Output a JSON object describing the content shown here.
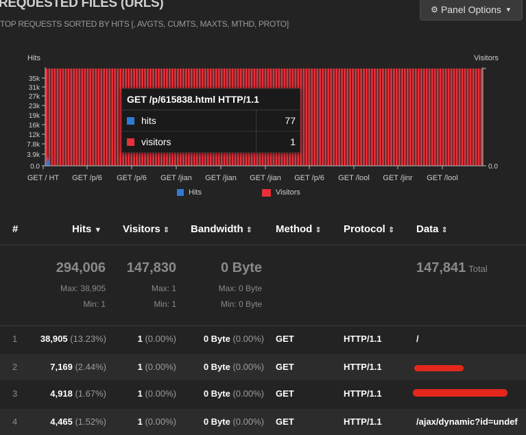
{
  "panel": {
    "title": "REQUESTED FILES (URLS)",
    "subtitle": "TOP REQUESTS SORTED BY HITS [, AVGTS, CUMTS, MAXTS, MTHD, PROTO]",
    "options_label": "Panel Options",
    "options_icon": "gear-icon"
  },
  "colors": {
    "hits": "#2f7bd3",
    "visitors": "#e8303a",
    "background": "#232323"
  },
  "chart_data": {
    "type": "bar",
    "left_axis_label": "Hits",
    "right_axis_label": "Visitors",
    "y_ticks": [
      "35k",
      "31k",
      "27k",
      "23k",
      "19k",
      "16k",
      "12k",
      "7.8k",
      "3.9k",
      "0.0"
    ],
    "y_right_ticks": [
      "0.0"
    ],
    "x_tick_labels": [
      "GET / HT",
      "GET /p/6",
      "GET /p/6",
      "GET /jian",
      "GET /jian",
      "GET /jian",
      "GET /p/6",
      "GET /lool",
      "GET /jinr",
      "GET /lool"
    ],
    "series": [
      {
        "name": "Hits",
        "color": "#2f7bd3"
      },
      {
        "name": "Visitors",
        "color": "#e8303a"
      }
    ],
    "tooltip": {
      "title": "GET /p/615838.html HTTP/1.1",
      "rows": [
        {
          "name": "hits",
          "value": "77",
          "color": "#2f7bd3"
        },
        {
          "name": "visitors",
          "value": "1",
          "color": "#e8303a"
        }
      ]
    },
    "legend": [
      "Hits",
      "Visitors"
    ]
  },
  "table": {
    "headers": {
      "index": "#",
      "hits": "Hits",
      "visitors": "Visitors",
      "bandwidth": "Bandwidth",
      "method": "Method",
      "protocol": "Protocol",
      "data": "Data"
    },
    "sort_desc": "▼",
    "sort_both": "⇕",
    "summary": {
      "hits_total": "294,006",
      "hits_max": "Max: 38,905",
      "hits_min": "Min: 1",
      "visitors_total": "147,830",
      "visitors_max": "Max: 1",
      "visitors_min": "Min: 1",
      "bandwidth_total": "0 Byte",
      "bandwidth_max": "Max: 0 Byte",
      "bandwidth_min": "Min: 0 Byte",
      "data_total": "147,841",
      "data_total_label": "Total"
    },
    "rows": [
      {
        "index": "1",
        "hits": "38,905",
        "hits_pct": "(13.23%)",
        "visitors": "1",
        "visitors_pct": "(0.00%)",
        "bandwidth": "0 Byte",
        "bandwidth_pct": "(0.00%)",
        "method": "GET",
        "protocol": "HTTP/1.1",
        "data": "/"
      },
      {
        "index": "2",
        "hits": "7,169",
        "hits_pct": "(2.44%)",
        "visitors": "1",
        "visitors_pct": "(0.00%)",
        "bandwidth": "0 Byte",
        "bandwidth_pct": "(0.00%)",
        "method": "GET",
        "protocol": "HTTP/1.1",
        "data": ""
      },
      {
        "index": "3",
        "hits": "4,918",
        "hits_pct": "(1.67%)",
        "visitors": "1",
        "visitors_pct": "(0.00%)",
        "bandwidth": "0 Byte",
        "bandwidth_pct": "(0.00%)",
        "method": "GET",
        "protocol": "HTTP/1.1",
        "data": ""
      },
      {
        "index": "4",
        "hits": "4,465",
        "hits_pct": "(1.52%)",
        "visitors": "1",
        "visitors_pct": "(0.00%)",
        "bandwidth": "0 Byte",
        "bandwidth_pct": "(0.00%)",
        "method": "GET",
        "protocol": "HTTP/1.1",
        "data": "/ajax/dynamic?id=undef"
      }
    ]
  }
}
